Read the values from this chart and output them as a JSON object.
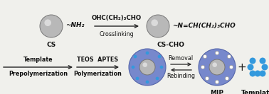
{
  "bg_color": "#f0f0ec",
  "cs_label": "CS",
  "cscho_label": "CS-CHO",
  "cs_functional": "~NH₂",
  "cscho_functional": "~N=CH(CH₂)₃CHO",
  "crosslink_reagent": "OHC(CH₂)₃CHO",
  "crosslink_label": "Crosslinking",
  "prepolym_label1": "Template",
  "prepolym_label2": "Prepolymerization",
  "polym_label1": "TEOS  APTES",
  "polym_label2": "Polymerization",
  "removal_label": "Removal",
  "rebinding_label": "Rebinding",
  "mip_label": "MIP",
  "template_label": "Template",
  "ball_gray": "#b8b8b8",
  "ball_gray_edge": "#777777",
  "blue_outer": "#7788cc",
  "blue_outer_edge": "#5566aa",
  "cyan_dot": "#3399dd",
  "white_hole": "#ffffff",
  "arrow_color": "#222222",
  "text_color": "#111111",
  "font_size_label": 6.5,
  "font_size_small": 5.8,
  "font_size_chem": 6.5,
  "font_size_plus": 11
}
